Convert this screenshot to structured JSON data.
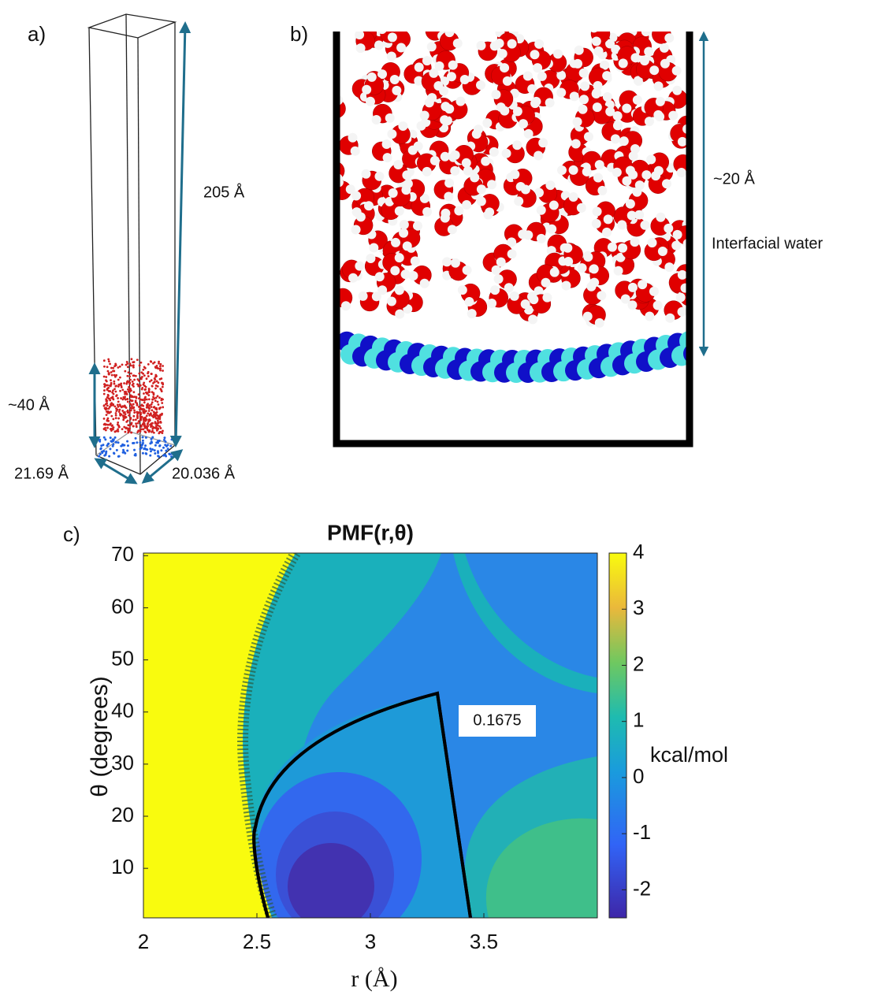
{
  "panels": {
    "a": {
      "label": "a)",
      "dimensions": [
        "205 Å",
        "~40 Å",
        "21.69 Å",
        "20.036 Å"
      ]
    },
    "b": {
      "label": "b)",
      "annotations": [
        "~20 Å",
        "Interfacial water"
      ]
    },
    "c": {
      "label": "c)"
    }
  },
  "chart_data": {
    "type": "heatmap",
    "title": "PMF(r,θ)",
    "xlabel": "r (Å)",
    "ylabel": "θ (degrees)",
    "xlim": [
      2,
      4
    ],
    "xticks": [
      2,
      2.5,
      3,
      3.5
    ],
    "ylim": [
      0.5,
      70.5
    ],
    "yticks": [
      10,
      20,
      30,
      40,
      50,
      60,
      70
    ],
    "colorbar": {
      "label": "kcal/mol",
      "lim": [
        -2.5,
        4
      ],
      "ticks": [
        -2,
        -1,
        0,
        1,
        2,
        3,
        4
      ]
    },
    "annotations": [
      "0.1675"
    ]
  }
}
